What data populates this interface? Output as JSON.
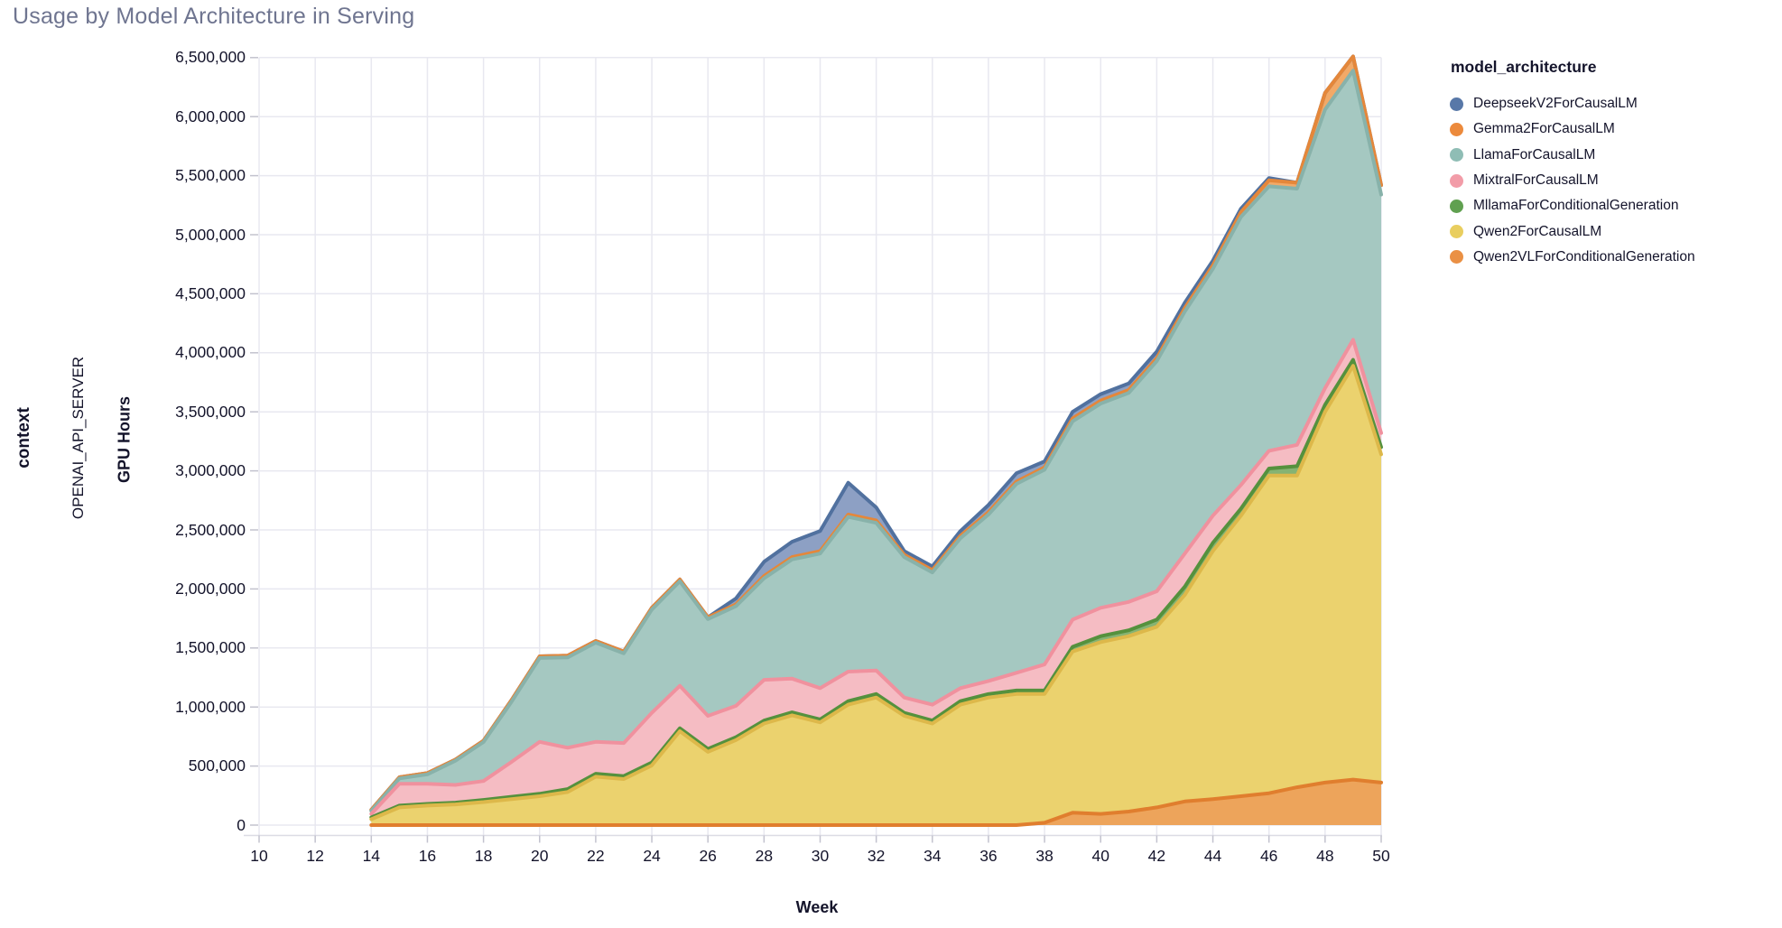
{
  "page_title": "Usage by Model Architecture in Serving",
  "facet": {
    "row_label": "context",
    "row_value": "OPENAI_API_SERVER"
  },
  "colors": {
    "title": "#6F7590",
    "text": "#14142B",
    "grid": "#E8E8F0",
    "axis_line": "#DCDCE4",
    "tick": "#C2C2CE",
    "background": "#FFFFFF"
  },
  "chart_data": {
    "type": "area",
    "stacked": true,
    "title": "Usage by Model Architecture in Serving",
    "xlabel": "Week",
    "ylabel": "GPU Hours",
    "legend_title": "model_architecture",
    "legend_position": "right",
    "grid": true,
    "xlim": [
      10,
      50
    ],
    "ylim": [
      0,
      6500000
    ],
    "x_ticks": [
      10,
      12,
      14,
      16,
      18,
      20,
      22,
      24,
      26,
      28,
      30,
      32,
      34,
      36,
      38,
      40,
      42,
      44,
      46,
      48,
      50
    ],
    "y_ticks": [
      0,
      500000,
      1000000,
      1500000,
      2000000,
      2500000,
      3000000,
      3500000,
      4000000,
      4500000,
      5000000,
      5500000,
      6000000,
      6500000
    ],
    "x": [
      14,
      15,
      16,
      17,
      18,
      19,
      20,
      21,
      22,
      23,
      24,
      25,
      26,
      27,
      28,
      29,
      30,
      31,
      32,
      33,
      34,
      35,
      36,
      37,
      38,
      39,
      40,
      41,
      42,
      43,
      44,
      45,
      46,
      47,
      48,
      49,
      50
    ],
    "stack_order_bottom_to_top": [
      "Qwen2VLForConditionalGeneration",
      "Qwen2ForCausalLM",
      "MllamaForConditionalGeneration",
      "MixtralForCausalLM",
      "LlamaForCausalLM",
      "Gemma2ForCausalLM",
      "DeepseekV2ForCausalLM"
    ],
    "series": [
      {
        "name": "DeepseekV2ForCausalLM",
        "dot_color": "#5878A8",
        "fill": "#8DA0C4",
        "stroke": "#51719F",
        "values": [
          0,
          0,
          0,
          0,
          0,
          0,
          0,
          0,
          0,
          0,
          0,
          0,
          0,
          50000,
          120000,
          130000,
          170000,
          270000,
          110000,
          30000,
          30000,
          40000,
          60000,
          70000,
          50000,
          55000,
          55000,
          55000,
          55000,
          45000,
          40000,
          30000,
          20000,
          0,
          0,
          0,
          0
        ]
      },
      {
        "name": "Gemma2ForCausalLM",
        "dot_color": "#EC8A3C",
        "fill": "#F2A967",
        "stroke": "#E5873A",
        "values": [
          10000,
          10000,
          10000,
          10000,
          12000,
          15000,
          15000,
          15000,
          15000,
          15000,
          15000,
          15000,
          15000,
          15000,
          20000,
          20000,
          20000,
          20000,
          20000,
          20000,
          20000,
          20000,
          20000,
          20000,
          20000,
          25000,
          25000,
          25000,
          25000,
          30000,
          30000,
          40000,
          50000,
          50000,
          140000,
          120000,
          80000
        ]
      },
      {
        "name": "LlamaForCausalLM",
        "dot_color": "#8FBDB5",
        "fill": "#A5C8C1",
        "stroke": "#88B2AA",
        "values": [
          25000,
          45000,
          80000,
          205000,
          330000,
          510000,
          710000,
          765000,
          840000,
          760000,
          875000,
          885000,
          820000,
          845000,
          860000,
          1010000,
          1140000,
          1310000,
          1250000,
          1190000,
          1120000,
          1270000,
          1410000,
          1600000,
          1650000,
          1680000,
          1730000,
          1770000,
          1950000,
          2050000,
          2090000,
          2270000,
          2240000,
          2170000,
          2360000,
          2280000,
          2020000
        ]
      },
      {
        "name": "MixtralForCausalLM",
        "dot_color": "#F29CA8",
        "fill": "#F5BCC3",
        "stroke": "#F0919E",
        "values": [
          30000,
          185000,
          170000,
          150000,
          160000,
          295000,
          440000,
          350000,
          270000,
          280000,
          420000,
          360000,
          280000,
          265000,
          345000,
          285000,
          265000,
          250000,
          200000,
          130000,
          135000,
          110000,
          110000,
          150000,
          220000,
          230000,
          240000,
          240000,
          240000,
          280000,
          230000,
          200000,
          150000,
          180000,
          140000,
          170000,
          120000
        ]
      },
      {
        "name": "MllamaForConditionalGeneration",
        "dot_color": "#60A050",
        "fill": "#85B373",
        "stroke": "#55913D",
        "values": [
          15000,
          15000,
          15000,
          15000,
          18000,
          20000,
          20000,
          25000,
          25000,
          25000,
          25000,
          25000,
          25000,
          25000,
          25000,
          25000,
          25000,
          30000,
          30000,
          25000,
          25000,
          30000,
          30000,
          30000,
          30000,
          40000,
          50000,
          50000,
          60000,
          70000,
          70000,
          60000,
          60000,
          80000,
          60000,
          50000,
          60000
        ]
      },
      {
        "name": "Qwen2ForCausalLM",
        "dot_color": "#E9CE5F",
        "fill": "#EBD26E",
        "stroke": "#DDB84A",
        "values": [
          50000,
          150000,
          165000,
          175000,
          195000,
          220000,
          245000,
          280000,
          410000,
          390000,
          505000,
          795000,
          620000,
          720000,
          860000,
          930000,
          870000,
          1020000,
          1080000,
          925000,
          860000,
          1020000,
          1080000,
          1110000,
          1090000,
          1365000,
          1455000,
          1485000,
          1530000,
          1750000,
          2100000,
          2375000,
          2690000,
          2640000,
          3140000,
          3505000,
          2780000
        ]
      },
      {
        "name": "Qwen2VLForConditionalGeneration",
        "dot_color": "#EA9044",
        "fill": "#EDA45B",
        "stroke": "#E07E2E",
        "values": [
          0,
          0,
          0,
          0,
          0,
          0,
          0,
          0,
          0,
          0,
          0,
          0,
          0,
          0,
          0,
          0,
          0,
          0,
          0,
          0,
          0,
          0,
          0,
          0,
          20000,
          105000,
          95000,
          115000,
          150000,
          200000,
          220000,
          245000,
          270000,
          320000,
          360000,
          385000,
          360000
        ]
      }
    ]
  }
}
